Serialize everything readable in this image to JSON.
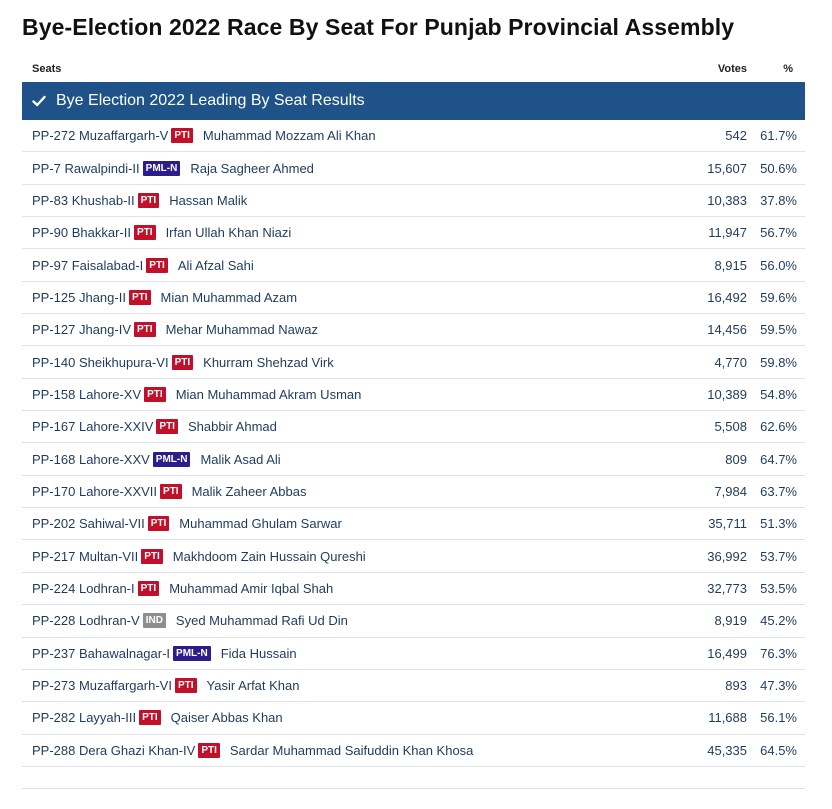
{
  "title": "Bye-Election 2022 Race By Seat For Punjab Provincial Assembly",
  "columns": {
    "seats": "Seats",
    "votes": "Votes",
    "pct": "%"
  },
  "banner": {
    "label": "Bye Election 2022 Leading By Seat Results",
    "icon": "check-icon"
  },
  "colors": {
    "banner": "#1f5289",
    "PTI": "#c0102a",
    "PML-N": "#2c1d8c",
    "IND": "#8e8e8e"
  },
  "rows": [
    {
      "seat": "PP-272 Muzaffargarh-V",
      "party": "PTI",
      "candidate": "Muhammad Mozzam Ali Khan",
      "votes": "542",
      "pct": "61.7%"
    },
    {
      "seat": "PP-7 Rawalpindi-II",
      "party": "PML-N",
      "candidate": "Raja Sagheer Ahmed",
      "votes": "15,607",
      "pct": "50.6%"
    },
    {
      "seat": "PP-83 Khushab-II",
      "party": "PTI",
      "candidate": "Hassan Malik",
      "votes": "10,383",
      "pct": "37.8%"
    },
    {
      "seat": "PP-90 Bhakkar-II",
      "party": "PTI",
      "candidate": "Irfan Ullah Khan Niazi",
      "votes": "11,947",
      "pct": "56.7%"
    },
    {
      "seat": "PP-97 Faisalabad-I",
      "party": "PTI",
      "candidate": "Ali Afzal Sahi",
      "votes": "8,915",
      "pct": "56.0%"
    },
    {
      "seat": "PP-125 Jhang-II",
      "party": "PTI",
      "candidate": "Mian Muhammad Azam",
      "votes": "16,492",
      "pct": "59.6%"
    },
    {
      "seat": "PP-127 Jhang-IV",
      "party": "PTI",
      "candidate": "Mehar Muhammad Nawaz",
      "votes": "14,456",
      "pct": "59.5%"
    },
    {
      "seat": "PP-140 Sheikhupura-VI",
      "party": "PTI",
      "candidate": "Khurram Shehzad Virk",
      "votes": "4,770",
      "pct": "59.8%"
    },
    {
      "seat": "PP-158 Lahore-XV",
      "party": "PTI",
      "candidate": "Mian Muhammad Akram Usman",
      "votes": "10,389",
      "pct": "54.8%"
    },
    {
      "seat": "PP-167 Lahore-XXIV",
      "party": "PTI",
      "candidate": "Shabbir Ahmad",
      "votes": "5,508",
      "pct": "62.6%"
    },
    {
      "seat": "PP-168 Lahore-XXV",
      "party": "PML-N",
      "candidate": "Malik Asad Ali",
      "votes": "809",
      "pct": "64.7%"
    },
    {
      "seat": "PP-170 Lahore-XXVII",
      "party": "PTI",
      "candidate": "Malik Zaheer Abbas",
      "votes": "7,984",
      "pct": "63.7%"
    },
    {
      "seat": "PP-202 Sahiwal-VII",
      "party": "PTI",
      "candidate": "Muhammad Ghulam Sarwar",
      "votes": "35,711",
      "pct": "51.3%"
    },
    {
      "seat": "PP-217 Multan-VII",
      "party": "PTI",
      "candidate": "Makhdoom Zain Hussain Qureshi",
      "votes": "36,992",
      "pct": "53.7%"
    },
    {
      "seat": "PP-224 Lodhran-I",
      "party": "PTI",
      "candidate": "Muhammad Amir Iqbal Shah",
      "votes": "32,773",
      "pct": "53.5%"
    },
    {
      "seat": "PP-228 Lodhran-V",
      "party": "IND",
      "candidate": "Syed Muhammad Rafi Ud Din",
      "votes": "8,919",
      "pct": "45.2%"
    },
    {
      "seat": "PP-237 Bahawalnagar-I",
      "party": "PML-N",
      "candidate": "Fida Hussain",
      "votes": "16,499",
      "pct": "76.3%"
    },
    {
      "seat": "PP-273 Muzaffargarh-VI",
      "party": "PTI",
      "candidate": "Yasir Arfat Khan",
      "votes": "893",
      "pct": "47.3%"
    },
    {
      "seat": "PP-282 Layyah-III",
      "party": "PTI",
      "candidate": "Qaiser Abbas Khan",
      "votes": "11,688",
      "pct": "56.1%"
    },
    {
      "seat": "PP-288 Dera Ghazi Khan-IV",
      "party": "PTI",
      "candidate": "Sardar Muhammad Saifuddin Khan Khosa",
      "votes": "45,335",
      "pct": "64.5%"
    }
  ]
}
